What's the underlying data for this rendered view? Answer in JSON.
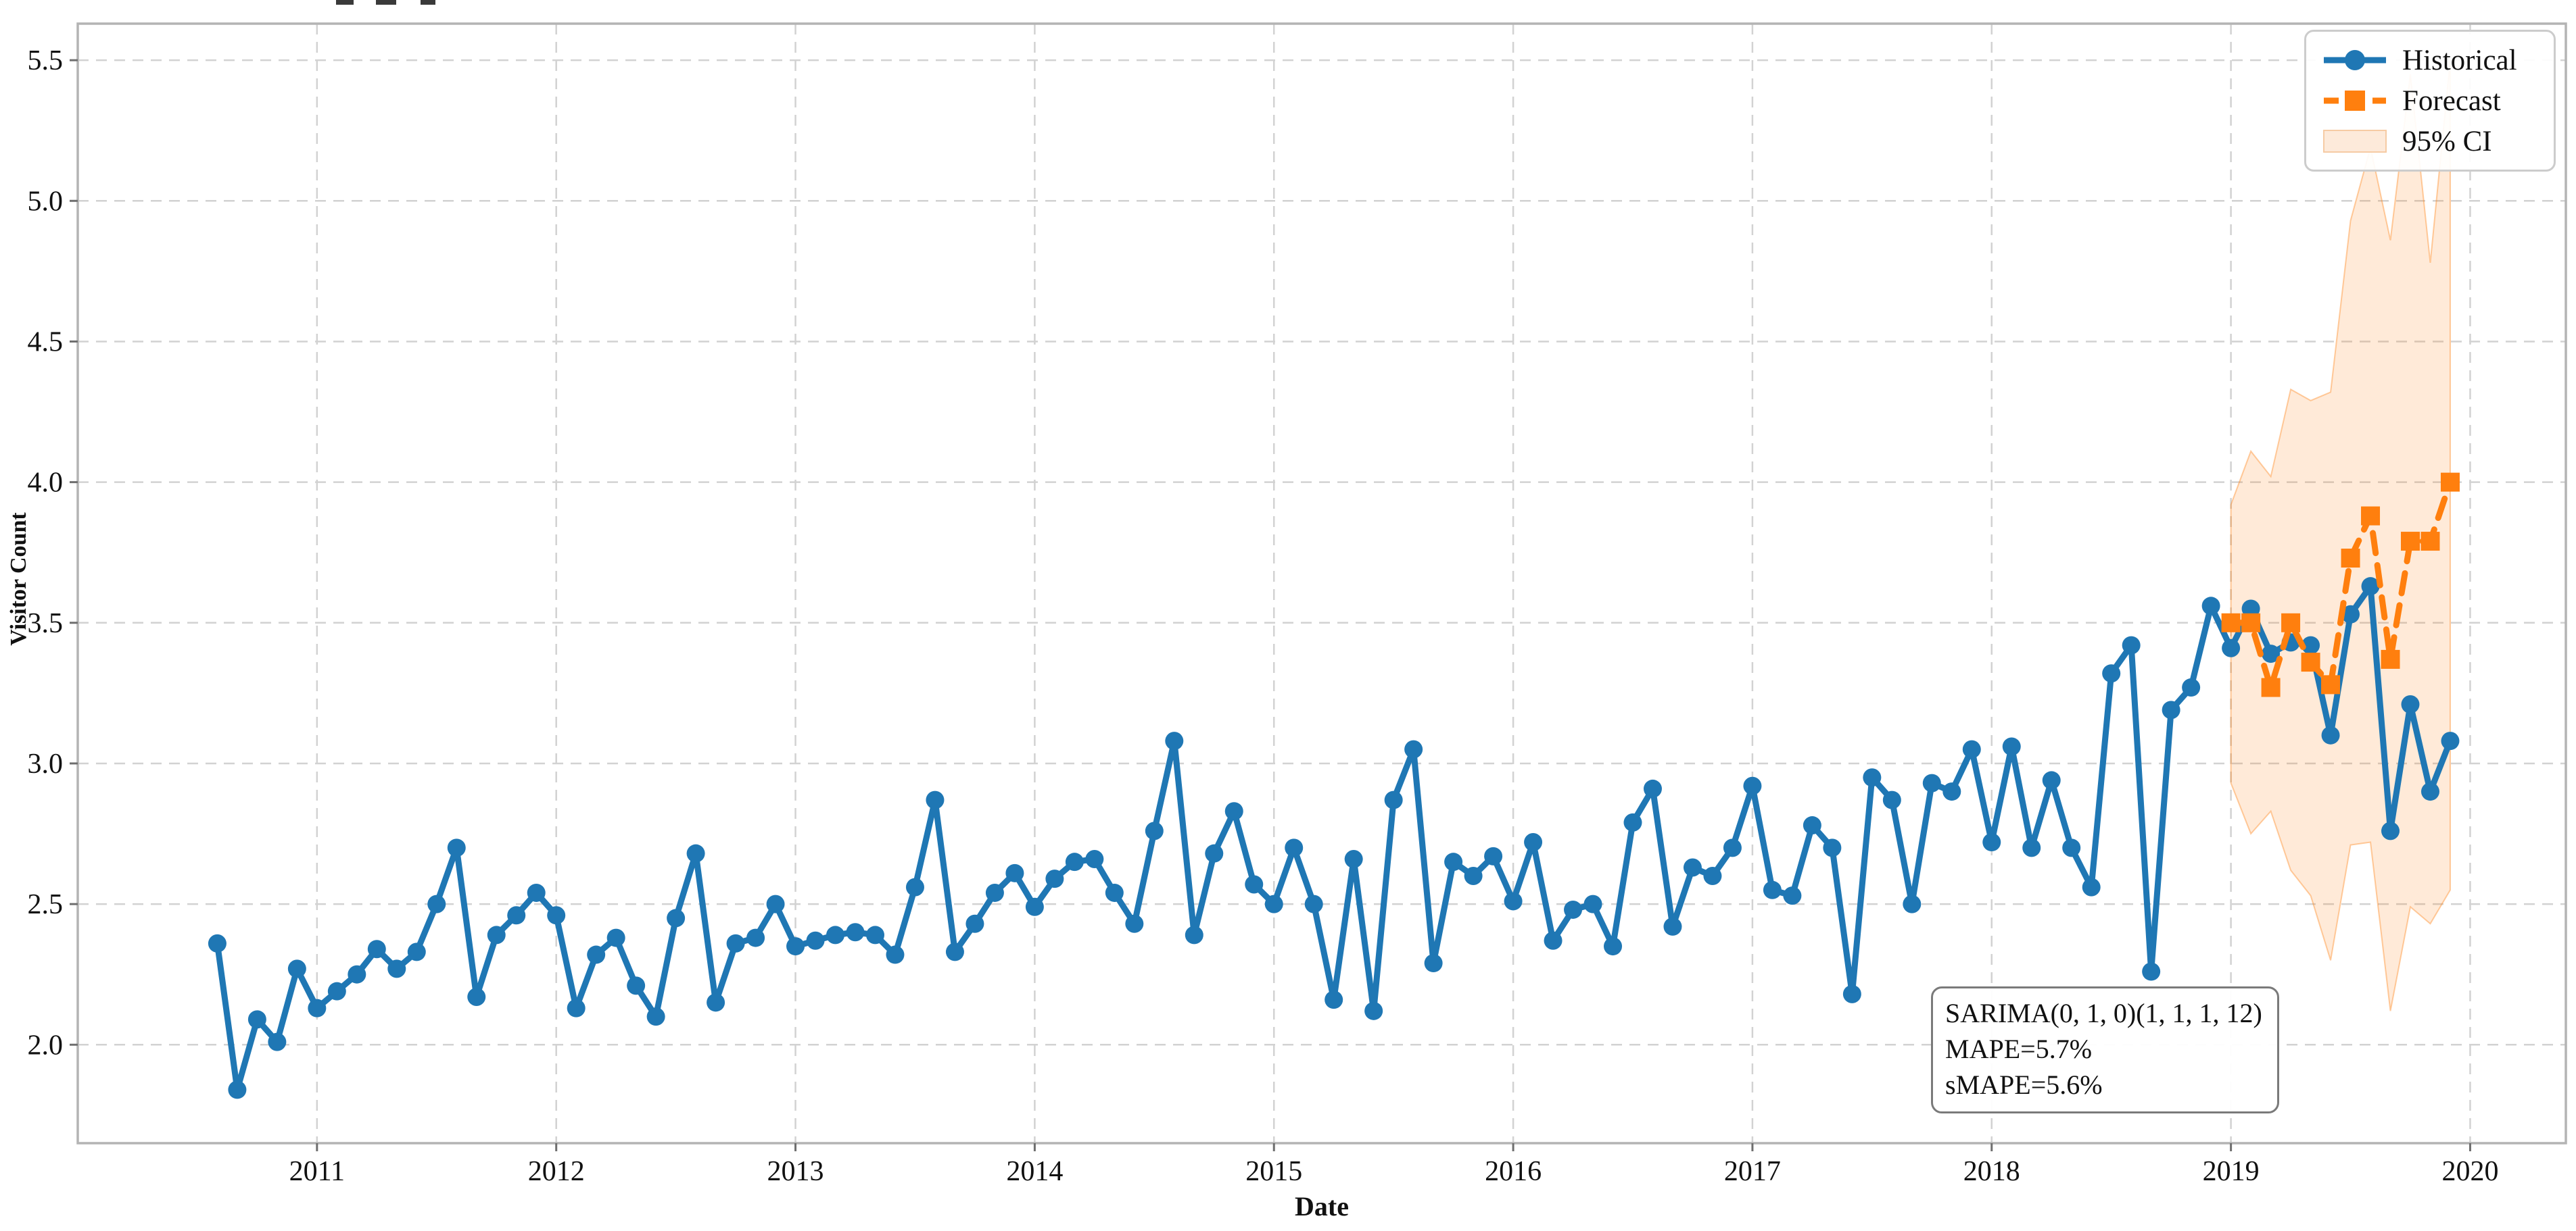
{
  "figure": {
    "background": "#ffffff",
    "plot_border_color": "#b4b4b4",
    "grid_color": "#d2d2d2"
  },
  "axes": {
    "xlabel": "Date",
    "ylabel": "Visitor Count"
  },
  "legend": {
    "items": [
      {
        "label": "Historical",
        "type": "line-circle",
        "color": "#1f77b4"
      },
      {
        "label": "Forecast",
        "type": "dashed-square",
        "color": "#ff7f0e"
      },
      {
        "label": "95% CI",
        "type": "patch",
        "fill": "#fdeada",
        "edge": "#f6cba4"
      }
    ]
  },
  "annotation": {
    "line1": "SARIMA(0, 1, 0)(1, 1, 1, 12)",
    "line2": "MAPE=5.7%",
    "line3": "sMAPE=5.6%"
  },
  "chart_data": {
    "type": "line",
    "title": "",
    "xlabel": "Date",
    "ylabel": "Visitor Count",
    "xlim": [
      2010.0,
      2020.4
    ],
    "ylim": [
      1.65,
      5.63
    ],
    "x_ticks": [
      2011,
      2012,
      2013,
      2014,
      2015,
      2016,
      2017,
      2018,
      2019,
      2020
    ],
    "y_ticks": [
      2.0,
      2.5,
      3.0,
      3.5,
      4.0,
      4.5,
      5.0,
      5.5
    ],
    "grid": true,
    "legend_position": "upper right",
    "series": [
      {
        "name": "Historical",
        "color": "#1f77b4",
        "marker": "circle",
        "line_style": "solid",
        "start_year": 2010,
        "start_month": 8,
        "frequency": "monthly",
        "values": [
          2.36,
          1.84,
          2.09,
          2.01,
          2.27,
          2.13,
          2.19,
          2.25,
          2.34,
          2.27,
          2.33,
          2.5,
          2.7,
          2.17,
          2.39,
          2.46,
          2.54,
          2.46,
          2.13,
          2.32,
          2.38,
          2.21,
          2.1,
          2.45,
          2.68,
          2.15,
          2.36,
          2.38,
          2.5,
          2.35,
          2.37,
          2.39,
          2.4,
          2.39,
          2.32,
          2.56,
          2.87,
          2.33,
          2.43,
          2.54,
          2.61,
          2.49,
          2.59,
          2.65,
          2.66,
          2.54,
          2.43,
          2.76,
          3.08,
          2.39,
          2.68,
          2.83,
          2.57,
          2.5,
          2.7,
          2.5,
          2.16,
          2.66,
          2.12,
          2.87,
          3.05,
          2.29,
          2.65,
          2.6,
          2.67,
          2.51,
          2.72,
          2.37,
          2.48,
          2.5,
          2.35,
          2.79,
          2.91,
          2.42,
          2.63,
          2.6,
          2.7,
          2.92,
          2.55,
          2.53,
          2.78,
          2.7,
          2.18,
          2.95,
          2.87,
          2.5,
          2.93,
          2.9,
          3.05,
          2.72,
          3.06,
          2.7,
          2.94,
          2.7,
          2.56,
          3.32,
          3.42,
          2.26,
          3.19,
          3.27,
          3.56,
          3.41,
          3.55,
          3.39,
          3.43,
          3.42,
          3.1,
          3.53,
          3.63,
          2.76,
          3.21,
          2.9,
          3.08
        ]
      },
      {
        "name": "Forecast",
        "color": "#ff7f0e",
        "marker": "square",
        "line_style": "dashed",
        "start_year": 2019,
        "start_month": 1,
        "frequency": "monthly",
        "values": [
          3.5,
          3.5,
          3.27,
          3.5,
          3.36,
          3.28,
          3.73,
          3.88,
          3.37,
          3.79,
          3.79,
          4.0
        ]
      }
    ],
    "confidence_interval": {
      "name": "95% CI",
      "fill": "rgba(255,127,14,0.16)",
      "edge": "rgba(255,127,14,0.38)",
      "start_year": 2019,
      "start_month": 1,
      "frequency": "monthly",
      "lower": [
        2.93,
        2.75,
        2.83,
        2.62,
        2.53,
        2.3,
        2.71,
        2.72,
        2.12,
        2.49,
        2.43,
        2.55
      ],
      "upper": [
        3.92,
        4.11,
        4.02,
        4.33,
        4.29,
        4.32,
        4.93,
        5.19,
        4.86,
        5.45,
        4.78,
        5.5
      ]
    }
  }
}
